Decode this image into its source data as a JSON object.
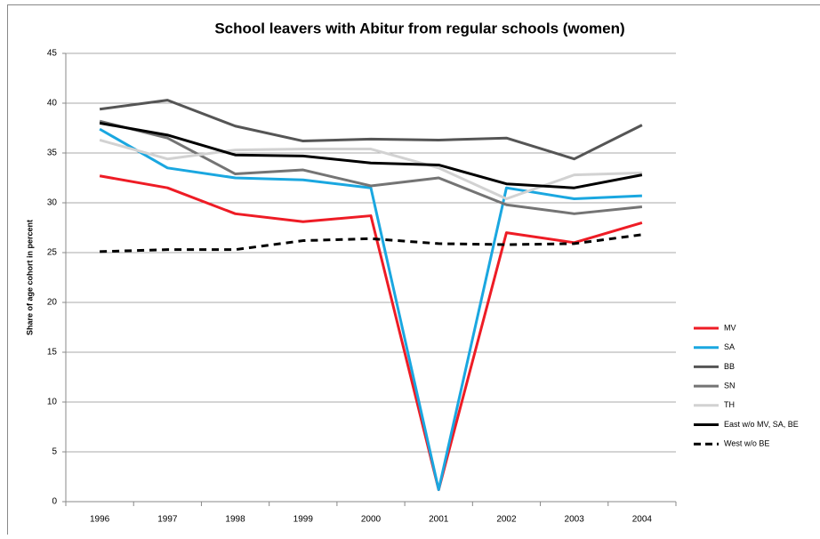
{
  "chart_data": {
    "type": "line",
    "title": "School leavers with Abitur from regular schools (women)",
    "y_label": "Share of age cohort in percent",
    "categories": [
      "1996",
      "1997",
      "1998",
      "1999",
      "2000",
      "2001",
      "2002",
      "2003",
      "2004"
    ],
    "ylim": [
      0,
      45
    ],
    "yticks": [
      0,
      5,
      10,
      15,
      20,
      25,
      30,
      35,
      40,
      45
    ],
    "grid": true,
    "legend": "right",
    "series": [
      {
        "name": "MV",
        "color": "#ee1c25",
        "values": [
          32.7,
          31.5,
          28.9,
          28.1,
          28.7,
          1.2,
          27.0,
          26.0,
          28.0
        ]
      },
      {
        "name": "SA",
        "color": "#1aa7e0",
        "values": [
          37.4,
          33.5,
          32.5,
          32.3,
          31.5,
          1.2,
          31.5,
          30.4,
          30.7
        ]
      },
      {
        "name": "BB",
        "color": "#555555",
        "values": [
          39.4,
          40.3,
          37.7,
          36.2,
          36.4,
          36.3,
          36.5,
          34.4,
          37.8
        ]
      },
      {
        "name": "SN",
        "color": "#747474",
        "values": [
          38.2,
          36.5,
          32.9,
          33.3,
          31.7,
          32.5,
          29.8,
          28.9,
          29.6
        ]
      },
      {
        "name": "TH",
        "color": "#d2d2d2",
        "values": [
          36.3,
          34.4,
          35.3,
          35.4,
          35.4,
          33.5,
          30.4,
          32.8,
          33.0
        ]
      },
      {
        "name": "East w/o MV, SA, BE",
        "color": "#000000",
        "values": [
          38.0,
          36.8,
          34.8,
          34.7,
          34.0,
          33.8,
          31.9,
          31.5,
          32.8
        ]
      },
      {
        "name": "West w/o BE",
        "color": "#000000",
        "dashed": true,
        "values": [
          25.1,
          25.3,
          25.3,
          26.2,
          26.4,
          25.9,
          25.8,
          25.9,
          26.8
        ]
      }
    ]
  }
}
